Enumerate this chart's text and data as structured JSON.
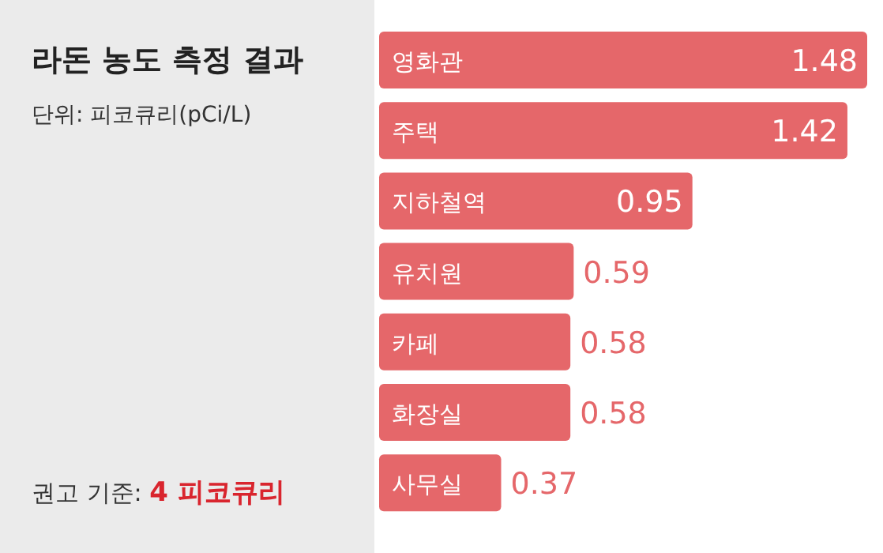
{
  "chart_data": {
    "type": "bar",
    "orientation": "horizontal",
    "title": "라돈 농도 측정 결과",
    "subtitle": "단위: 피코큐리(pCi/L)",
    "annotations": [
      "권고 기준: 4 피코큐리"
    ],
    "categories": [
      "영화관",
      "주택",
      "지하철역",
      "유치원",
      "카페",
      "화장실",
      "사무실"
    ],
    "values": [
      1.48,
      1.42,
      0.95,
      0.59,
      0.58,
      0.58,
      0.37
    ],
    "color": "#e5676a",
    "data_labels": true
  }
}
